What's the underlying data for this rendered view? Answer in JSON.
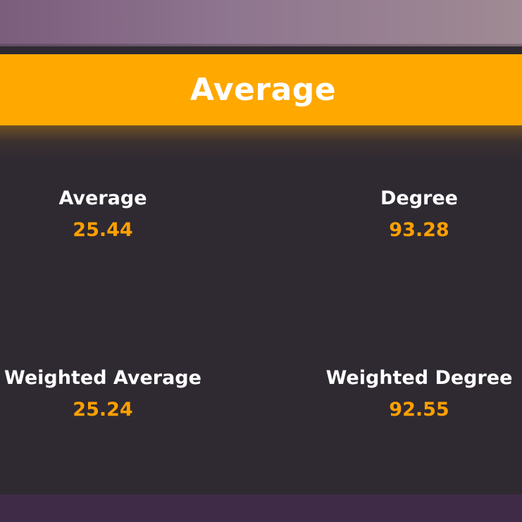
{
  "banner": {
    "title": "Average"
  },
  "metrics": [
    {
      "label": "Average",
      "value": "25.44"
    },
    {
      "label": "Degree",
      "value": "93.28"
    },
    {
      "label": "Weighted Average",
      "value": "25.24"
    },
    {
      "label": "Weighted Degree",
      "value": "92.55"
    }
  ],
  "colors": {
    "banner": "#ffa800",
    "value_text": "#ffa000",
    "panel": "#2f2a32",
    "label_text": "#ffffff"
  }
}
